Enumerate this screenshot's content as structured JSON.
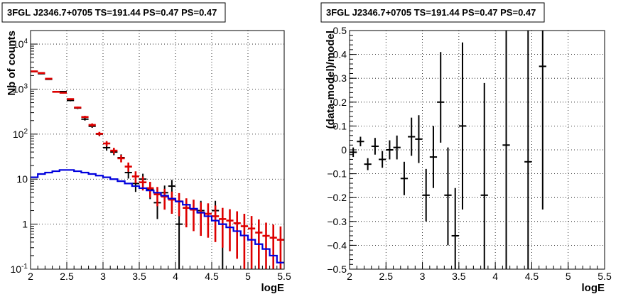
{
  "chart_data": [
    {
      "type": "scatter",
      "title": "3FGL J2346.7+0705 TS=191.44 PS=0.47 PS=0.47",
      "xlabel": "logE",
      "ylabel": "Nb of counts",
      "xlim": [
        2,
        5.5
      ],
      "ylim": [
        0.1,
        20000
      ],
      "yscale": "log",
      "grid": true,
      "x_ticks": [
        "2",
        "2.5",
        "3",
        "3.5",
        "4",
        "4.5",
        "5",
        "5.5"
      ],
      "y_ticks": [
        "10^{-1}",
        "1",
        "10",
        "10^{2}",
        "10^{3}",
        "10^{4}"
      ],
      "bin_width": 0.1,
      "colors": {
        "data": "#000000",
        "model": "#dd0000",
        "source": "#0000dd"
      },
      "series": [
        {
          "style": "points-with-errors",
          "color": "#000000",
          "x": [
            2.05,
            2.15,
            2.25,
            2.35,
            2.45,
            2.55,
            2.65,
            2.75,
            2.85,
            2.95,
            3.05,
            3.15,
            3.25,
            3.35,
            3.45,
            3.55,
            3.65,
            3.75,
            3.85,
            3.95,
            4.05,
            4.35,
            4.55,
            4.65
          ],
          "y": [
            2450,
            2200,
            1650,
            870,
            880,
            560,
            380,
            215,
            150,
            100,
            50,
            40,
            30,
            14,
            8,
            10,
            6,
            3,
            5,
            7,
            1,
            2,
            2,
            1
          ],
          "yerr_lo": [
            50,
            47,
            41,
            29,
            30,
            24,
            20,
            15,
            12,
            10,
            7,
            6,
            5.5,
            3.7,
            2.8,
            3.2,
            2.4,
            1.7,
            2.2,
            2.6,
            0.9,
            1.3,
            1.3,
            0.9
          ],
          "yerr_hi": [
            50,
            47,
            41,
            29,
            30,
            24,
            20,
            15,
            12,
            10,
            7,
            6,
            5.5,
            3.7,
            2.8,
            3.2,
            2.4,
            1.7,
            2.2,
            2.6,
            1.0,
            1.3,
            1.3,
            1.0
          ]
        },
        {
          "style": "points-with-errors",
          "color": "#dd0000",
          "x": [
            2.05,
            2.15,
            2.25,
            2.35,
            2.45,
            2.55,
            2.65,
            2.75,
            2.85,
            2.95,
            3.05,
            3.15,
            3.25,
            3.35,
            3.45,
            3.55,
            3.65,
            3.75,
            3.85,
            3.95,
            4.05,
            4.15,
            4.25,
            4.35,
            4.45,
            4.55,
            4.65,
            4.75,
            4.85,
            4.95,
            5.05,
            5.15,
            5.25,
            5.35,
            5.45
          ],
          "y": [
            2480,
            2280,
            1700,
            870,
            830,
            600,
            390,
            240,
            160,
            102,
            62,
            43,
            29,
            19,
            11.5,
            8.5,
            6.3,
            4.6,
            4.1,
            3.5,
            3.2,
            2.3,
            2.1,
            1.8,
            1.7,
            1.5,
            1.3,
            1.2,
            1.05,
            0.9,
            0.8,
            0.65,
            0.55,
            0.5,
            0.45
          ],
          "yerr_lo": [
            50,
            48,
            41,
            29,
            29,
            24,
            20,
            15,
            13,
            10,
            7.9,
            6.6,
            5.4,
            4.4,
            3.4,
            2.9,
            2.4,
            2.1,
            2.0,
            1.8,
            1.7,
            1.45,
            1.4,
            1.25,
            1.2,
            1.1,
            1.0,
            0.95,
            0.88,
            0.8,
            0.72,
            0.62,
            0.53,
            0.48,
            0.44
          ],
          "yerr_hi": [
            50,
            48,
            41,
            29,
            29,
            24,
            20,
            15,
            13,
            10,
            7.9,
            6.6,
            5.4,
            4.4,
            3.4,
            2.9,
            2.4,
            2.1,
            2.0,
            1.8,
            1.7,
            1.45,
            1.4,
            1.25,
            1.2,
            1.1,
            1.0,
            0.95,
            0.88,
            0.8,
            0.72,
            0.62,
            0.53,
            0.48,
            0.44
          ]
        },
        {
          "style": "histogram",
          "color": "#0000dd",
          "edges": [
            2.0,
            2.1,
            2.2,
            2.3,
            2.4,
            2.5,
            2.6,
            2.7,
            2.8,
            2.9,
            3.0,
            3.1,
            3.2,
            3.3,
            3.4,
            3.5,
            3.6,
            3.7,
            3.8,
            3.9,
            4.0,
            4.1,
            4.2,
            4.3,
            4.4,
            4.5,
            4.6,
            4.7,
            4.8,
            4.9,
            5.0,
            5.1,
            5.2,
            5.3,
            5.4,
            5.5
          ],
          "values": [
            11,
            13,
            14,
            15,
            16,
            16,
            15,
            14,
            13,
            12,
            11,
            10,
            9,
            8,
            7,
            6.3,
            5.6,
            5.0,
            4.3,
            3.7,
            3.2,
            2.7,
            2.2,
            1.8,
            1.5,
            1.2,
            1.0,
            0.85,
            0.7,
            0.56,
            0.45,
            0.36,
            0.28,
            0.2,
            0.14
          ]
        }
      ]
    },
    {
      "type": "scatter",
      "title": "3FGL J2346.7+0705 TS=191.44 PS=0.47 PS=0.47",
      "xlabel": "logE",
      "ylabel": "(data-model)/model",
      "xlim": [
        2,
        5.5
      ],
      "ylim": [
        -0.5,
        0.5
      ],
      "grid": true,
      "x_ticks": [
        "2",
        "2.5",
        "3",
        "3.5",
        "4",
        "4.5",
        "5",
        "5.5"
      ],
      "y_ticks": [
        "-0.5",
        "-0.4",
        "-0.3",
        "-0.2",
        "-0.1",
        "0",
        "0.1",
        "0.2",
        "0.3",
        "0.4",
        "0.5"
      ],
      "bin_width": 0.1,
      "series": [
        {
          "style": "points-with-errors",
          "color": "#000000",
          "x": [
            2.05,
            2.15,
            2.25,
            2.35,
            2.45,
            2.55,
            2.65,
            2.75,
            2.85,
            2.95,
            3.05,
            3.15,
            3.25,
            3.35,
            3.45,
            3.55,
            3.85,
            4.15,
            4.45,
            4.65
          ],
          "y": [
            -0.01,
            0.035,
            -0.06,
            0.015,
            -0.04,
            0.0,
            0.01,
            -0.12,
            0.055,
            0.045,
            -0.19,
            -0.03,
            0.2,
            -0.19,
            -0.36,
            0.1,
            -0.19,
            0.02,
            -0.05,
            0.35
          ],
          "yerr_lo": [
            0.02,
            0.02,
            0.025,
            0.035,
            0.035,
            0.04,
            0.05,
            0.07,
            0.08,
            0.1,
            0.11,
            0.13,
            0.17,
            0.21,
            0.2,
            0.35,
            0.47,
            0.6,
            0.6,
            0.6
          ],
          "yerr_hi": [
            0.02,
            0.02,
            0.025,
            0.035,
            0.035,
            0.04,
            0.05,
            0.07,
            0.08,
            0.1,
            0.11,
            0.13,
            0.21,
            0.2,
            0.2,
            0.35,
            0.47,
            0.6,
            0.6,
            0.6
          ]
        }
      ]
    }
  ]
}
